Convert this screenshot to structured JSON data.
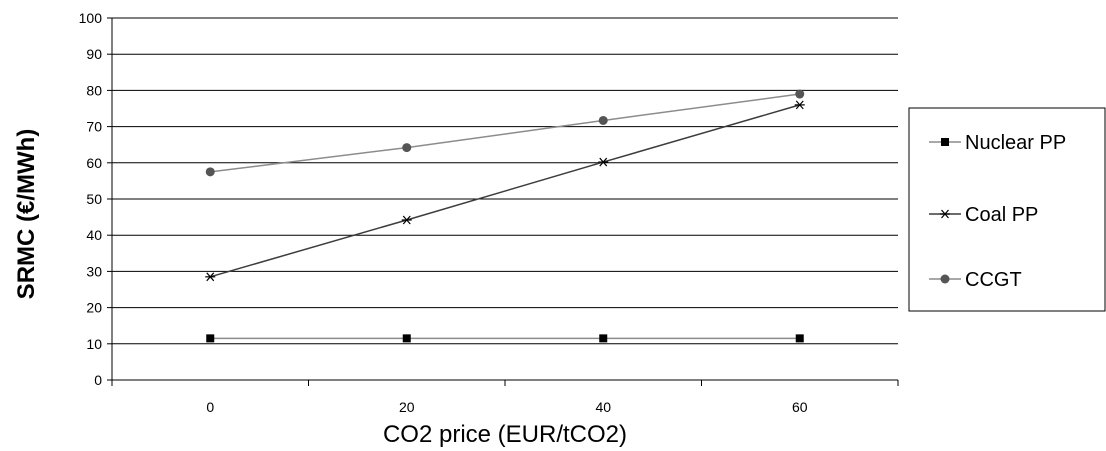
{
  "chart_data": {
    "type": "line",
    "title": "",
    "xlabel": "CO2 price (EUR/tCO2)",
    "ylabel": "SRMC (€/MWh)",
    "x": [
      0,
      20,
      40,
      60
    ],
    "x_tick_labels": [
      "0",
      "20",
      "40",
      "60"
    ],
    "ylim": [
      0,
      100
    ],
    "y_ticks": [
      0,
      10,
      20,
      30,
      40,
      50,
      60,
      70,
      80,
      90,
      100
    ],
    "grid": "horizontal",
    "legend_position": "right",
    "series": [
      {
        "name": "Nuclear PP",
        "values": [
          11.5,
          11.5,
          11.5,
          11.5
        ],
        "marker": "square",
        "color": "#000000",
        "line_color": "#8c8c8c"
      },
      {
        "name": "Coal PP",
        "values": [
          28.5,
          44.2,
          60.2,
          76.0
        ],
        "marker": "asterisk",
        "color": "#000000",
        "line_color": "#3c3c3c"
      },
      {
        "name": "CCGT",
        "values": [
          57.5,
          64.2,
          71.7,
          79.0
        ],
        "marker": "circle",
        "color": "#555555",
        "line_color": "#8c8c8c"
      }
    ]
  }
}
